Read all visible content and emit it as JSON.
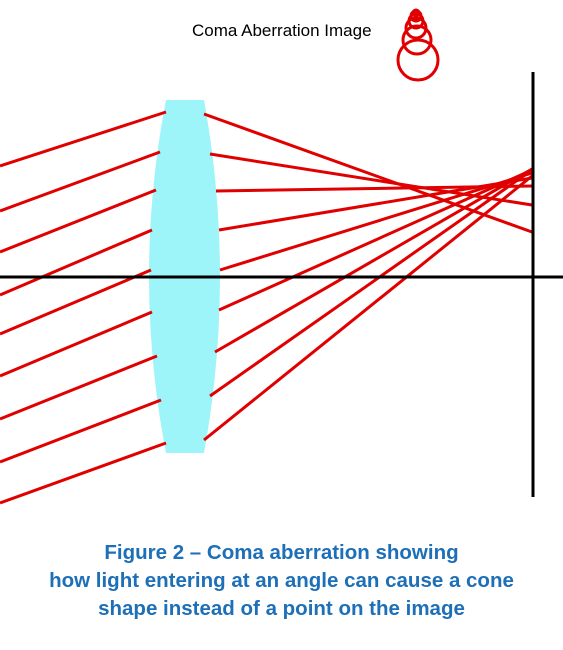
{
  "inset_label": "Coma Aberration Image",
  "caption": {
    "lines": [
      "Figure 2 – Coma aberration showing",
      "how light entering at an angle can cause a cone",
      "shape instead of a point on the image"
    ]
  },
  "colors": {
    "ray": "#e00000",
    "lens": "#9ef5f9",
    "axis": "#000000",
    "caption": "#1d6fb8",
    "inset_circles": "#e00000"
  }
}
